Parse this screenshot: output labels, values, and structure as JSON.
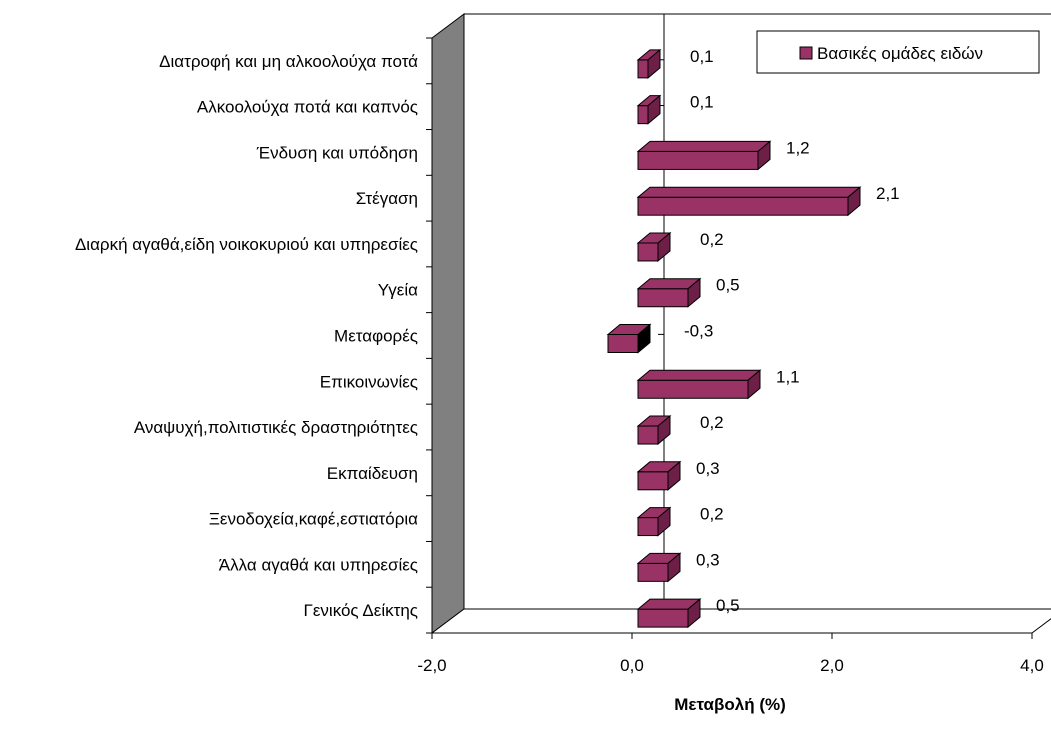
{
  "chart_data": {
    "type": "bar",
    "orientation": "horizontal",
    "style": "3d",
    "categories": [
      "Διατροφή και μη αλκοολούχα ποτά",
      "Αλκοολούχα ποτά και καπνός",
      "Ένδυση και υπόδηση",
      "Στέγαση",
      "Διαρκή αγαθά,είδη νοικοκυριού και υπηρεσίες",
      "Υγεία",
      "Μεταφορές",
      "Επικοινωνίες",
      "Αναψυχή,πολιτιστικές δραστηριότητες",
      "Εκπαίδευση",
      "Ξενοδοχεία,καφέ,εστιατόρια",
      "Άλλα αγαθά και υπηρεσίες",
      "Γενικός Δείκτης"
    ],
    "series": [
      {
        "name": "Βασικές ομάδες ειδών",
        "color": "#993366",
        "values": [
          0.1,
          0.1,
          1.2,
          2.1,
          0.2,
          0.5,
          -0.3,
          1.1,
          0.2,
          0.3,
          0.2,
          0.3,
          0.5
        ],
        "labels": [
          "0,1",
          "0,1",
          "1,2",
          "2,1",
          "0,2",
          "0,5",
          "-0,3",
          "1,1",
          "0,2",
          "0,3",
          "0,2",
          "0,3",
          "0,5"
        ]
      }
    ],
    "xlabel": "Μεταβολή (%)",
    "ylabel": "",
    "xlim": [
      -2.0,
      4.0
    ],
    "xticks": [
      -2.0,
      0.0,
      2.0,
      4.0
    ],
    "xtick_labels": [
      "-2,0",
      "0,0",
      "2,0",
      "4,0"
    ],
    "grid": false,
    "legend_position": "top-right"
  }
}
